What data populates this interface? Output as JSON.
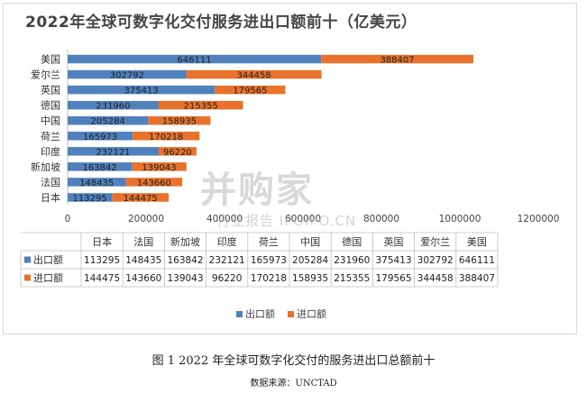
{
  "chart_data": {
    "type": "bar",
    "orientation": "horizontal",
    "stacked": true,
    "title": "2022年全球可数字化交付服务进出口额前十（亿美元）",
    "categories": [
      "日本",
      "法国",
      "新加坡",
      "印度",
      "荷兰",
      "中国",
      "德国",
      "英国",
      "爱尔兰",
      "美国"
    ],
    "series": [
      {
        "name": "出口额",
        "color": "#4f81bd",
        "values": [
          113295,
          148435,
          163842,
          232121,
          165973,
          205284,
          231960,
          375413,
          302792,
          646111
        ]
      },
      {
        "name": "进口额",
        "color": "#e8722c",
        "values": [
          144475,
          143660,
          139043,
          96220,
          170218,
          158935,
          215355,
          179565,
          344458,
          388407
        ]
      }
    ],
    "x_ticks": [
      "0",
      "200000",
      "400000",
      "600000",
      "800000",
      "1000000",
      "1200000"
    ],
    "xlim": [
      0,
      1200000
    ],
    "legend": "bottom",
    "data_table": true
  },
  "watermark": {
    "main": "并购家",
    "sub": "行业报告 IPOIPO.CN"
  },
  "caption": "图 1 2022  年全球可数字化交付的服务进出口总额前十",
  "source": "数据来源：UNCTAD"
}
